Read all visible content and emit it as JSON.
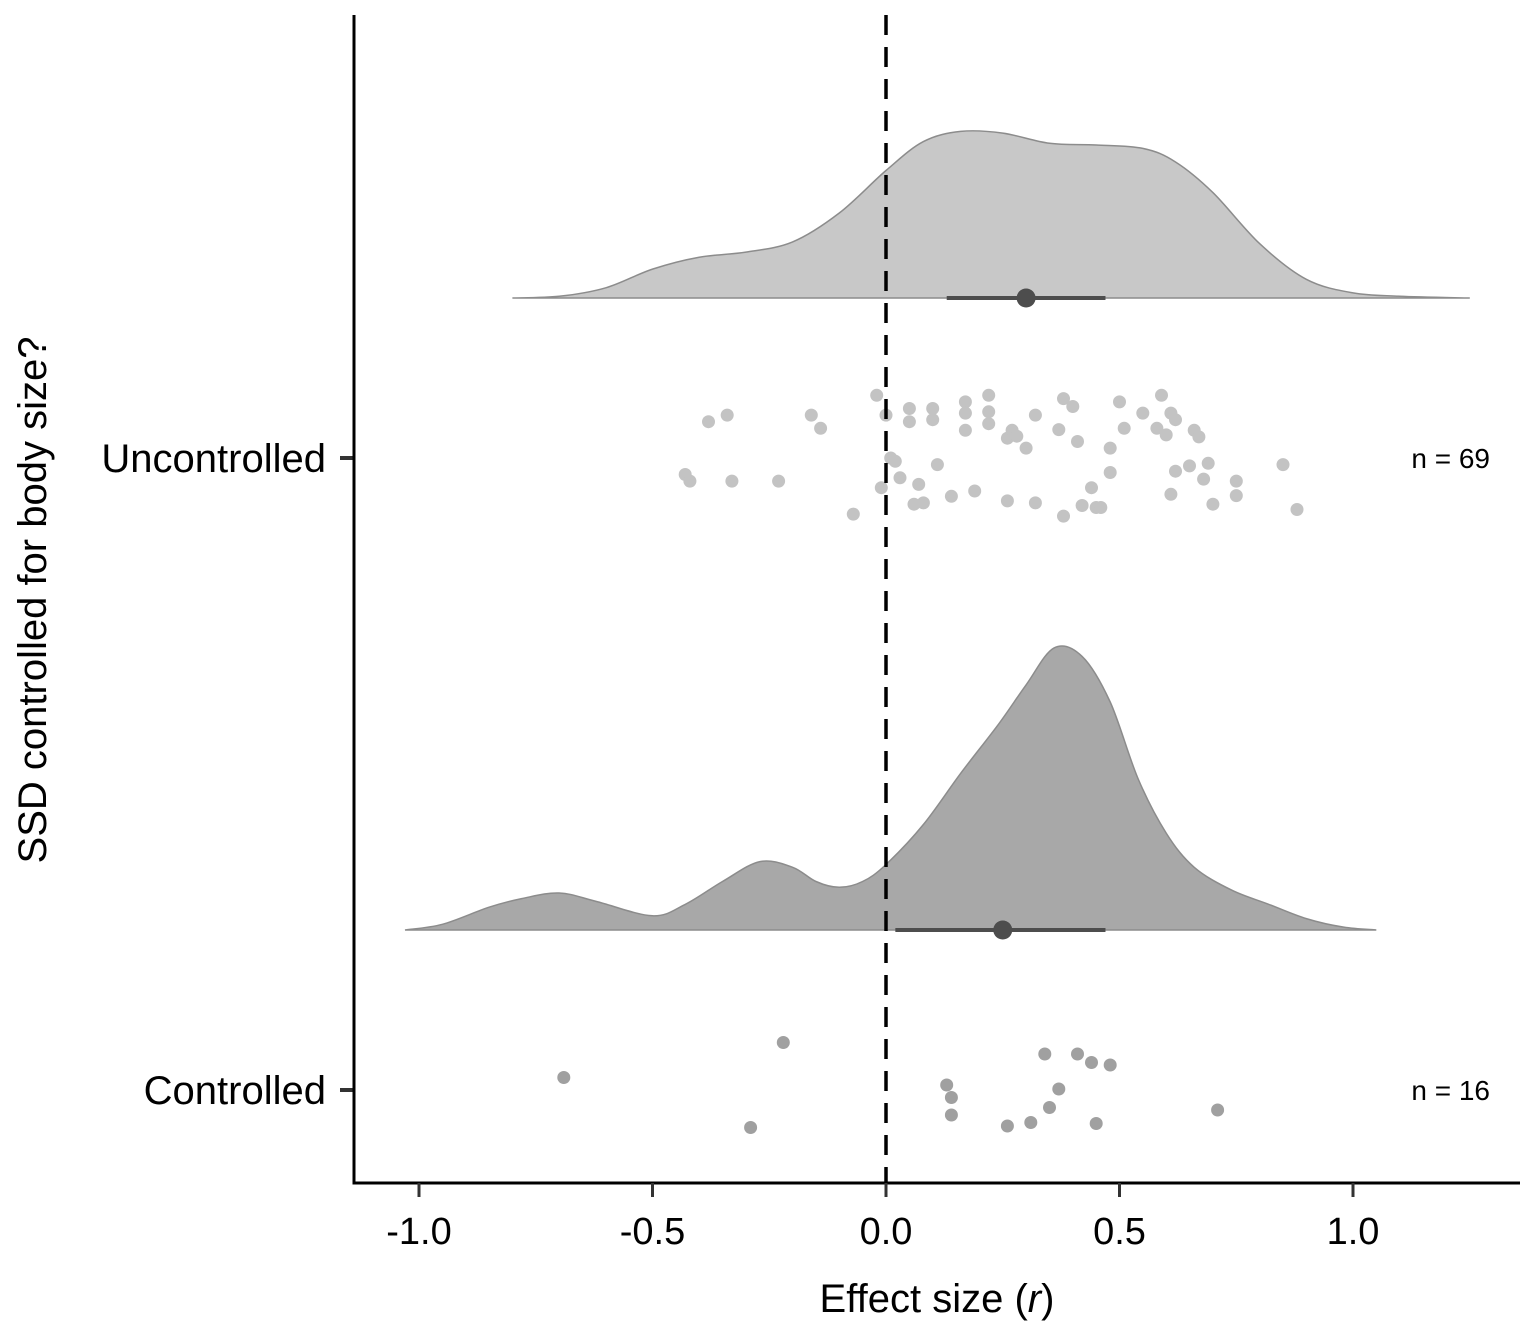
{
  "chart_data": {
    "type": "raincloud",
    "title": "",
    "xlabel_text": "Effect size (",
    "xlabel_italic": "r",
    "xlabel_close": ")",
    "ylabel": "SSD controlled for body size?",
    "xlim": [
      -1.15,
      1.35
    ],
    "xticks": [
      -1.0,
      -0.5,
      0.0,
      0.5,
      1.0
    ],
    "xtick_labels": [
      "-1.0",
      "-0.5",
      "0.0",
      "0.5",
      "1.0"
    ],
    "reference_line_x": 0.0,
    "grid": false,
    "groups": [
      {
        "name": "Uncontrolled",
        "n_label": "n = 69",
        "fill": "#c8c8c8",
        "point_color": "#c3c3c3",
        "summary": {
          "mean": 0.3,
          "ci": [
            0.13,
            0.47
          ]
        },
        "density": {
          "x": [
            -0.8,
            -0.7,
            -0.6,
            -0.5,
            -0.4,
            -0.3,
            -0.2,
            -0.1,
            0.0,
            0.08,
            0.16,
            0.25,
            0.35,
            0.45,
            0.55,
            0.62,
            0.7,
            0.8,
            0.9,
            1.0,
            1.1,
            1.25
          ],
          "height": [
            0.0,
            0.01,
            0.06,
            0.17,
            0.24,
            0.27,
            0.33,
            0.5,
            0.75,
            0.92,
            0.98,
            0.97,
            0.91,
            0.9,
            0.88,
            0.8,
            0.62,
            0.32,
            0.11,
            0.03,
            0.01,
            0.0
          ]
        },
        "points": [
          {
            "x": -0.43,
            "j": -0.25
          },
          {
            "x": -0.42,
            "j": -0.35
          },
          {
            "x": -0.38,
            "j": 0.55
          },
          {
            "x": -0.34,
            "j": 0.65
          },
          {
            "x": -0.33,
            "j": -0.35
          },
          {
            "x": -0.23,
            "j": -0.35
          },
          {
            "x": -0.16,
            "j": 0.65
          },
          {
            "x": -0.14,
            "j": 0.45
          },
          {
            "x": -0.07,
            "j": -0.85
          },
          {
            "x": -0.02,
            "j": 0.95
          },
          {
            "x": -0.01,
            "j": -0.45
          },
          {
            "x": 0.0,
            "j": 0.65
          },
          {
            "x": 0.01,
            "j": 0.0
          },
          {
            "x": 0.02,
            "j": -0.05
          },
          {
            "x": 0.03,
            "j": -0.3
          },
          {
            "x": 0.05,
            "j": 0.55
          },
          {
            "x": 0.05,
            "j": 0.75
          },
          {
            "x": 0.06,
            "j": -0.7
          },
          {
            "x": 0.07,
            "j": -0.4
          },
          {
            "x": 0.08,
            "j": -0.68
          },
          {
            "x": 0.1,
            "j": 0.75
          },
          {
            "x": 0.1,
            "j": 0.58
          },
          {
            "x": 0.11,
            "j": -0.1
          },
          {
            "x": 0.14,
            "j": -0.58
          },
          {
            "x": 0.17,
            "j": 0.85
          },
          {
            "x": 0.17,
            "j": 0.68
          },
          {
            "x": 0.17,
            "j": 0.42
          },
          {
            "x": 0.19,
            "j": -0.5
          },
          {
            "x": 0.22,
            "j": 0.95
          },
          {
            "x": 0.22,
            "j": 0.7
          },
          {
            "x": 0.22,
            "j": 0.52
          },
          {
            "x": 0.26,
            "j": 0.3
          },
          {
            "x": 0.26,
            "j": -0.65
          },
          {
            "x": 0.27,
            "j": 0.42
          },
          {
            "x": 0.28,
            "j": 0.33
          },
          {
            "x": 0.32,
            "j": 0.65
          },
          {
            "x": 0.32,
            "j": -0.68
          },
          {
            "x": 0.37,
            "j": 0.43
          },
          {
            "x": 0.38,
            "j": 0.9
          },
          {
            "x": 0.38,
            "j": -0.88
          },
          {
            "x": 0.4,
            "j": 0.78
          },
          {
            "x": 0.41,
            "j": 0.25
          },
          {
            "x": 0.42,
            "j": -0.72
          },
          {
            "x": 0.44,
            "j": -0.45
          },
          {
            "x": 0.45,
            "j": -0.75
          },
          {
            "x": 0.46,
            "j": -0.75
          },
          {
            "x": 0.48,
            "j": 0.15
          },
          {
            "x": 0.48,
            "j": -0.22
          },
          {
            "x": 0.5,
            "j": 0.85
          },
          {
            "x": 0.51,
            "j": 0.45
          },
          {
            "x": 0.55,
            "j": 0.68
          },
          {
            "x": 0.58,
            "j": 0.45
          },
          {
            "x": 0.59,
            "j": 0.95
          },
          {
            "x": 0.6,
            "j": 0.35
          },
          {
            "x": 0.61,
            "j": 0.68
          },
          {
            "x": 0.61,
            "j": -0.55
          },
          {
            "x": 0.62,
            "j": -0.2
          },
          {
            "x": 0.62,
            "j": 0.58
          },
          {
            "x": 0.65,
            "j": -0.12
          },
          {
            "x": 0.66,
            "j": 0.42
          },
          {
            "x": 0.67,
            "j": 0.32
          },
          {
            "x": 0.68,
            "j": -0.32
          },
          {
            "x": 0.69,
            "j": -0.08
          },
          {
            "x": 0.7,
            "j": -0.7
          },
          {
            "x": 0.75,
            "j": -0.35
          },
          {
            "x": 0.75,
            "j": -0.57
          },
          {
            "x": 0.85,
            "j": -0.1
          },
          {
            "x": 0.88,
            "j": -0.78
          },
          {
            "x": 0.3,
            "j": 0.15
          }
        ]
      },
      {
        "name": "Controlled",
        "n_label": "n = 16",
        "fill": "#a8a8a8",
        "point_color": "#a0a0a0",
        "summary": {
          "mean": 0.25,
          "ci": [
            0.02,
            0.47
          ]
        },
        "density": {
          "x": [
            -1.03,
            -0.95,
            -0.85,
            -0.78,
            -0.7,
            -0.62,
            -0.5,
            -0.43,
            -0.35,
            -0.27,
            -0.2,
            -0.15,
            -0.1,
            -0.05,
            0.0,
            0.08,
            0.16,
            0.24,
            0.3,
            0.36,
            0.42,
            0.48,
            0.54,
            0.6,
            0.66,
            0.74,
            0.82,
            0.9,
            0.98,
            1.05
          ],
          "height": [
            0.0,
            0.02,
            0.08,
            0.11,
            0.13,
            0.1,
            0.05,
            0.09,
            0.17,
            0.24,
            0.22,
            0.17,
            0.15,
            0.17,
            0.23,
            0.37,
            0.55,
            0.72,
            0.86,
            0.99,
            0.96,
            0.8,
            0.53,
            0.34,
            0.22,
            0.14,
            0.09,
            0.04,
            0.01,
            0.0
          ]
        },
        "points": [
          {
            "x": -0.69,
            "j": 0.25
          },
          {
            "x": -0.29,
            "j": -0.75
          },
          {
            "x": -0.22,
            "j": 0.95
          },
          {
            "x": 0.13,
            "j": 0.1
          },
          {
            "x": 0.14,
            "j": -0.15
          },
          {
            "x": 0.14,
            "j": -0.5
          },
          {
            "x": 0.26,
            "j": -0.72
          },
          {
            "x": 0.31,
            "j": -0.65
          },
          {
            "x": 0.34,
            "j": 0.72
          },
          {
            "x": 0.35,
            "j": -0.35
          },
          {
            "x": 0.37,
            "j": 0.02
          },
          {
            "x": 0.41,
            "j": 0.72
          },
          {
            "x": 0.44,
            "j": 0.55
          },
          {
            "x": 0.45,
            "j": -0.67
          },
          {
            "x": 0.48,
            "j": 0.5
          },
          {
            "x": 0.71,
            "j": -0.4
          }
        ]
      }
    ]
  }
}
